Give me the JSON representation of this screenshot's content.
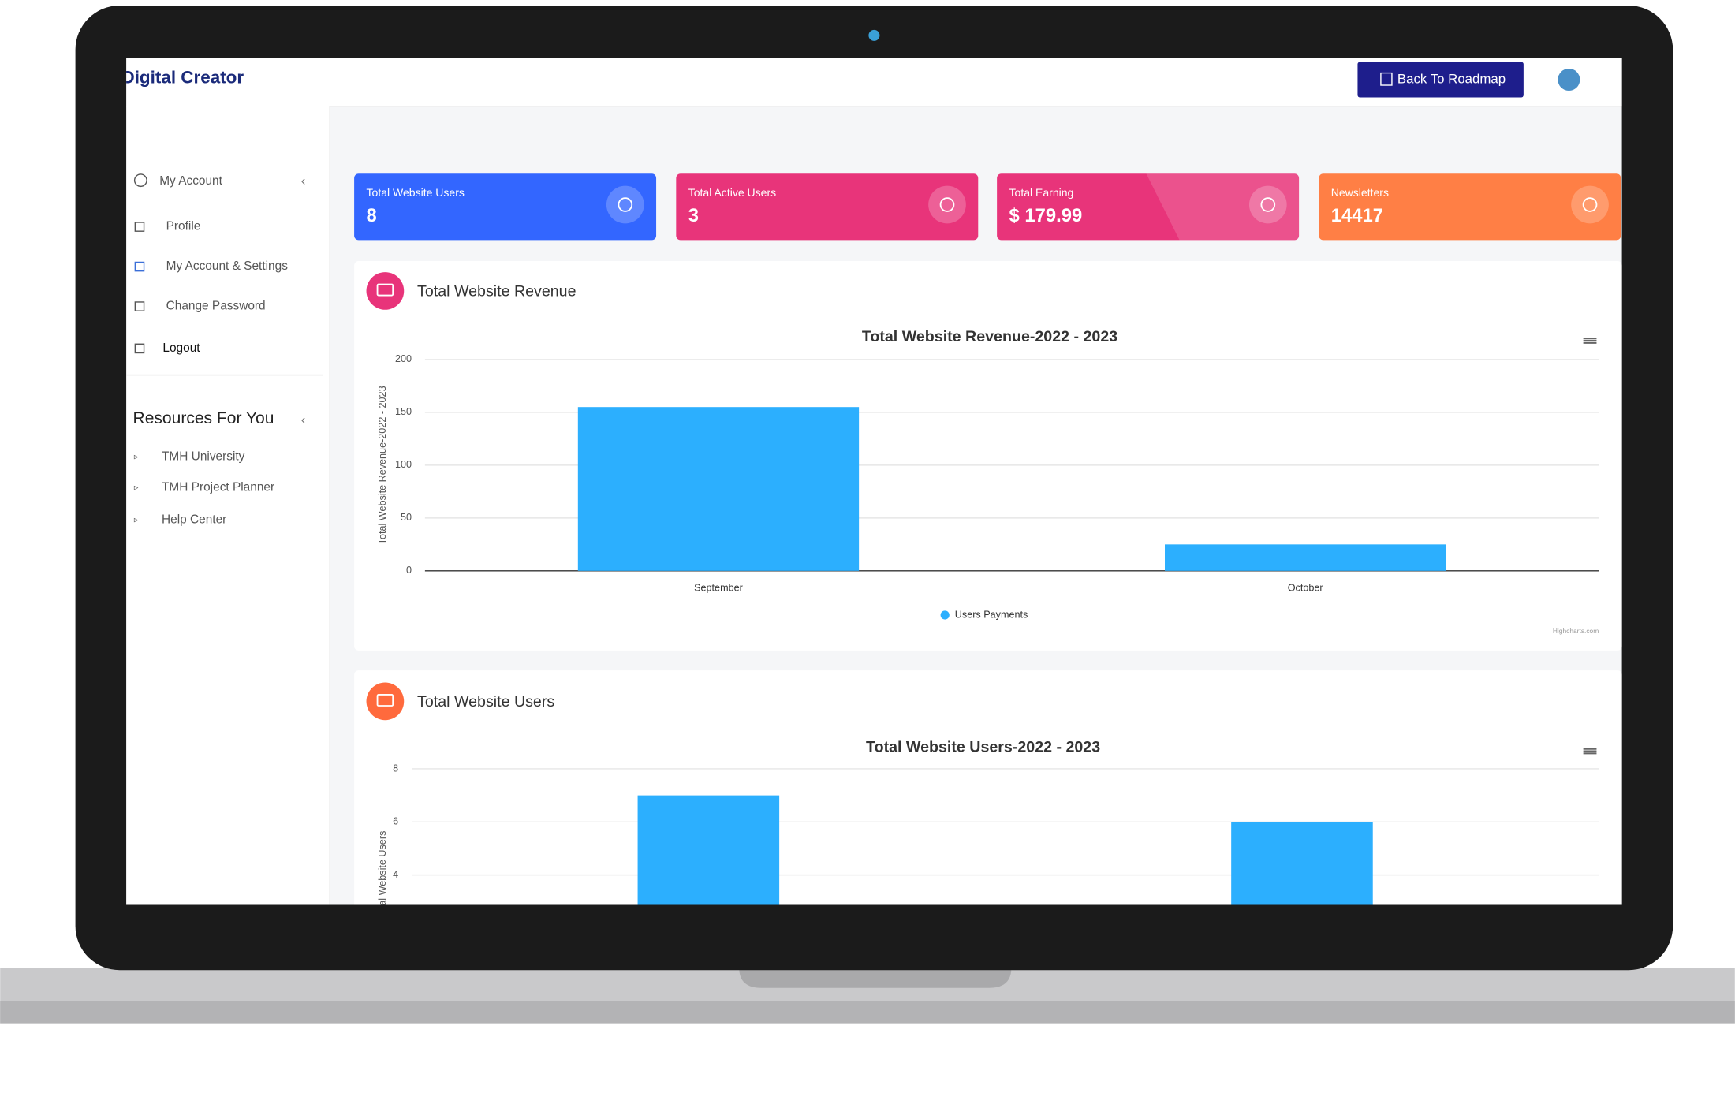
{
  "header": {
    "logo": "Digital Creator",
    "button": "Back To Roadmap"
  },
  "sidebar": {
    "account": "My Account",
    "items": [
      "Profile",
      "My Account & Settings",
      "Change Password",
      "Logout"
    ],
    "resources_title": "Resources For You",
    "resources": [
      "TMH University",
      "TMH Project Planner",
      "Help Center"
    ]
  },
  "cards": [
    {
      "label": "Total Website Users",
      "value": 8,
      "color": "#3366ff"
    },
    {
      "label": "Total Active Users",
      "value": 3,
      "color": "#e8347a"
    },
    {
      "label": "Total Earning",
      "value": "$ 179.99",
      "color": "#e8347a"
    },
    {
      "label": "Newsletters",
      "value": 14417,
      "color": "#ff7f45"
    }
  ],
  "panels": [
    {
      "heading": "Total Website Revenue",
      "icon_color": "#e8347a",
      "chart": {
        "type": "bar",
        "title": "Total Website Revenue-2022 - 2023",
        "y_label": "Total Website Revenue-2022 - 2023",
        "categories": [
          "September",
          "October"
        ],
        "series": [
          {
            "name": "Users Payments",
            "color": "#2caffe",
            "values": [
              155,
              25
            ]
          }
        ],
        "ylim": [
          0,
          200
        ],
        "yticks": [
          0,
          50,
          100,
          150,
          200
        ],
        "grid": true,
        "credits": "Highcharts.com"
      }
    },
    {
      "heading": "Total Website Users",
      "icon_color": "#ff6a3d",
      "chart": {
        "type": "bar",
        "title": "Total Website Users-2022 - 2023",
        "y_label": "Total Website Users",
        "categories": [
          null,
          null
        ],
        "series": [
          {
            "color": "#2caffe",
            "values": [
              7,
              6
            ]
          }
        ],
        "ylim": [
          0,
          8
        ],
        "yticks": [
          4,
          6,
          8
        ],
        "grid": true
      }
    }
  ]
}
